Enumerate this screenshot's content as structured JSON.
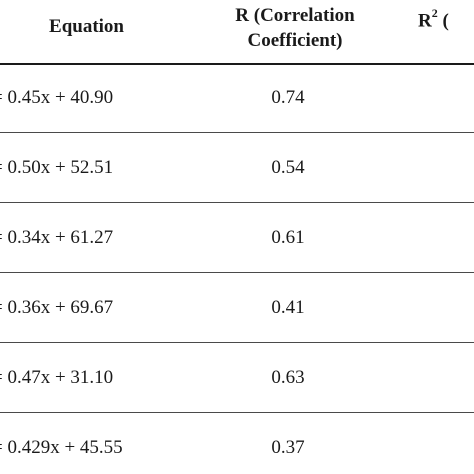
{
  "table": {
    "headers": {
      "equation": "Equation",
      "r_line1": "R (Correlation",
      "r_line2": "Coefficient)",
      "r2_base": "R",
      "r2_sup": "2",
      "r2_suffix": " ("
    },
    "rows": [
      {
        "equation": "= 0.45x + 40.90",
        "r": "0.74"
      },
      {
        "equation": "= 0.50x + 52.51",
        "r": "0.54"
      },
      {
        "equation": "= 0.34x + 61.27",
        "r": "0.61"
      },
      {
        "equation": "= 0.36x + 69.67",
        "r": "0.41"
      },
      {
        "equation": "= 0.47x + 31.10",
        "r": "0.63"
      },
      {
        "equation": "= 0.429x + 45.55",
        "r": "0.37"
      }
    ]
  }
}
